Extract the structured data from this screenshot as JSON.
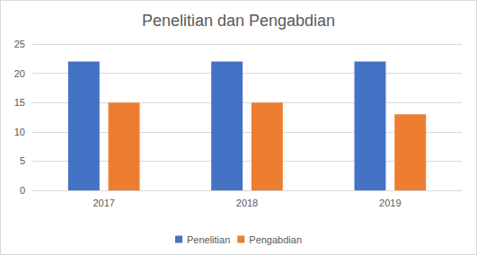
{
  "chart_data": {
    "type": "bar",
    "title": "Penelitian dan Pengabdian",
    "categories": [
      "2017",
      "2018",
      "2019"
    ],
    "series": [
      {
        "name": "Penelitian",
        "color": "#4472c4",
        "values": [
          22,
          22,
          22
        ]
      },
      {
        "name": "Pengabdian",
        "color": "#ed7d31",
        "values": [
          15,
          15,
          13
        ]
      }
    ],
    "ylim": [
      0,
      25
    ],
    "yticks": [
      0,
      5,
      10,
      15,
      20,
      25
    ],
    "grid": true,
    "legend": "bottom"
  }
}
